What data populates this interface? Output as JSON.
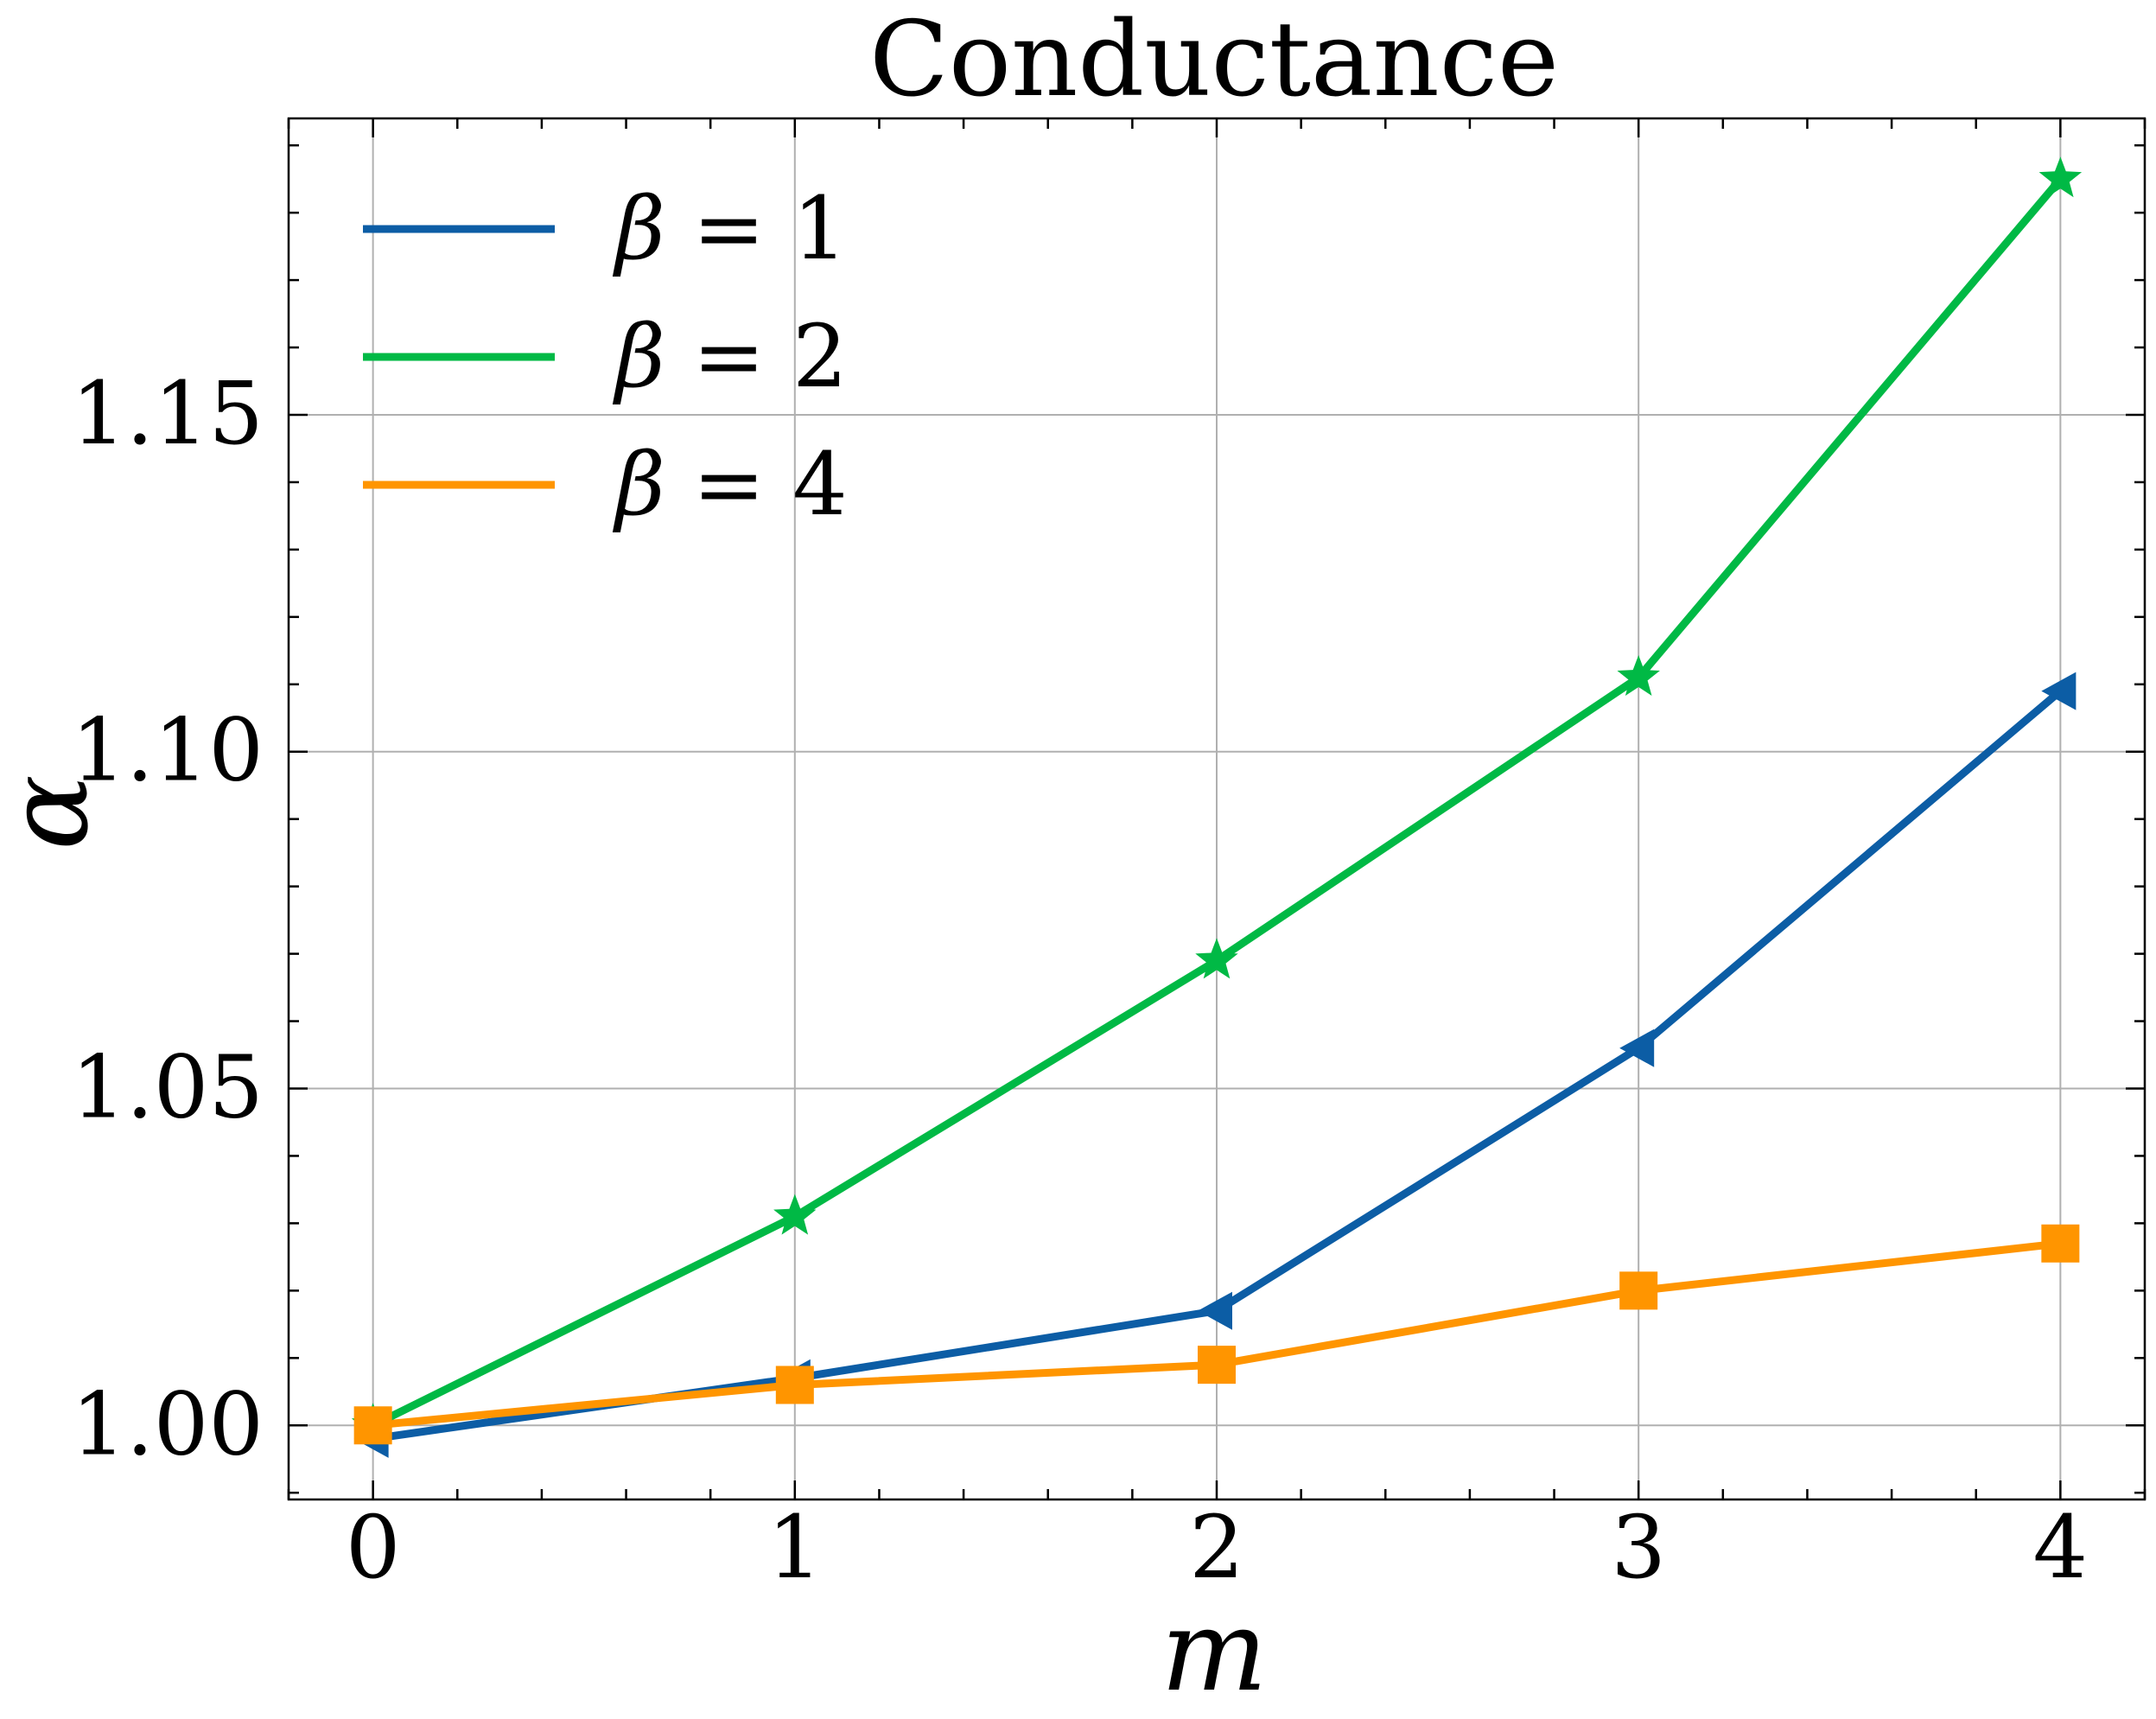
{
  "chart_data": {
    "type": "line",
    "title": "Conductance",
    "xlabel": "m",
    "ylabel": "α",
    "x": [
      0,
      1,
      2,
      3,
      4
    ],
    "xlim": [
      -0.2,
      4.2
    ],
    "ylim": [
      0.989,
      1.194
    ],
    "xticks": [
      0,
      1,
      2,
      3,
      4
    ],
    "yticks": [
      1.0,
      1.05,
      1.1,
      1.15
    ],
    "xtick_labels": [
      "0",
      "1",
      "2",
      "3",
      "4"
    ],
    "ytick_labels": [
      "1.00",
      "1.05",
      "1.10",
      "1.15"
    ],
    "grid": true,
    "legend_position": "top-left",
    "series": [
      {
        "name": "β = 1",
        "legend_symbol": "β",
        "legend_value": "= 1",
        "color": "#0c5da5",
        "marker": "triangle-left",
        "values": [
          0.998,
          1.007,
          1.017,
          1.056,
          1.109
        ]
      },
      {
        "name": "β = 2",
        "legend_symbol": "β",
        "legend_value": "= 2",
        "color": "#00b945",
        "marker": "star",
        "values": [
          1.0,
          1.031,
          1.069,
          1.111,
          1.185
        ]
      },
      {
        "name": "β = 4",
        "legend_symbol": "β",
        "legend_value": "= 4",
        "color": "#ff9500",
        "marker": "square",
        "values": [
          1.0,
          1.006,
          1.009,
          1.02,
          1.027
        ]
      }
    ]
  }
}
